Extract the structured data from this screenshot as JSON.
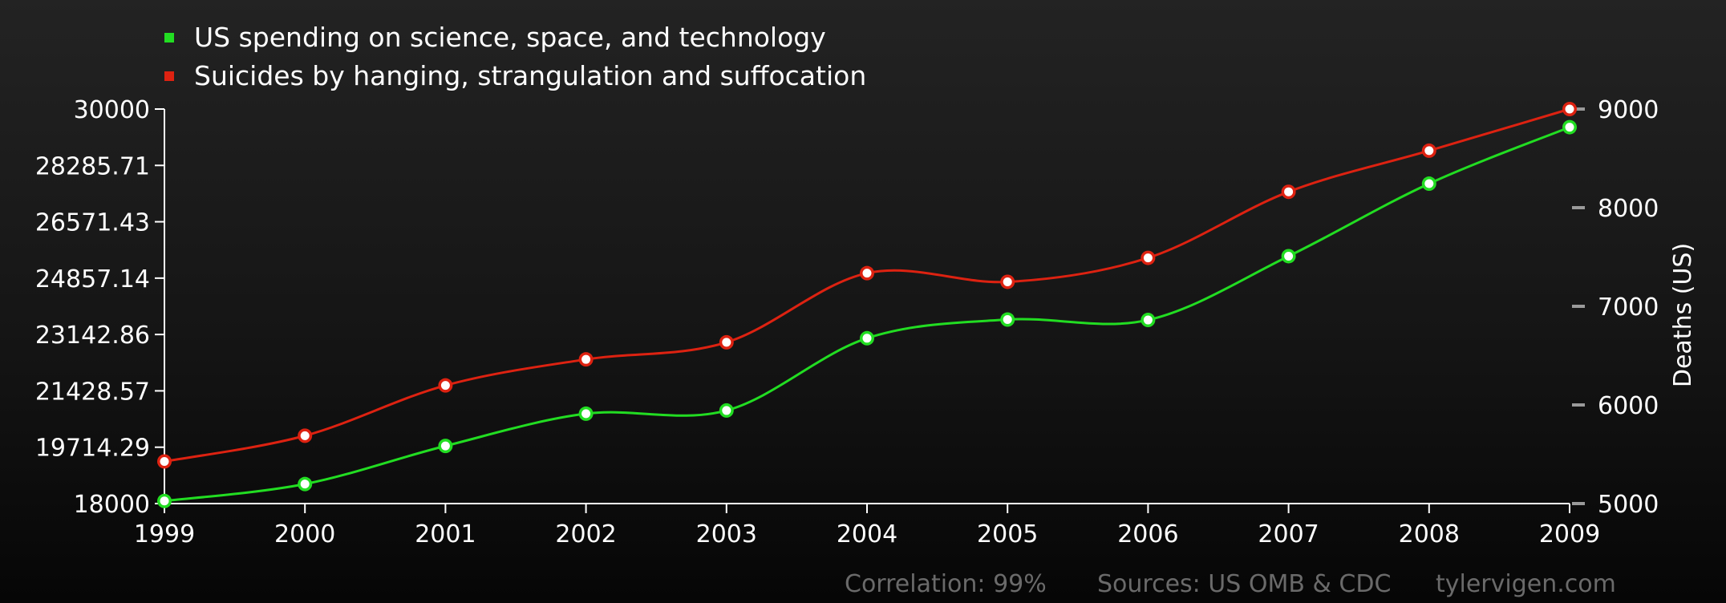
{
  "chart_data": {
    "type": "line",
    "x": [
      "1999",
      "2000",
      "2001",
      "2002",
      "2003",
      "2004",
      "2005",
      "2006",
      "2007",
      "2008",
      "2009"
    ],
    "series": [
      {
        "name": "US spending on science, space, and technology",
        "color": "#22dd22",
        "axis": "left",
        "values": [
          18079,
          18594,
          19753,
          20734,
          20831,
          23029,
          23597,
          23584,
          25525,
          27731,
          29449
        ]
      },
      {
        "name": "Suicides by hanging, strangulation and suffocation",
        "color": "#dd2211",
        "axis": "right",
        "values": [
          5427,
          5688,
          6198,
          6462,
          6635,
          7336,
          7248,
          7491,
          8161,
          8578,
          9000
        ]
      }
    ],
    "y_left": {
      "lim": [
        18000,
        30000
      ],
      "ticks": [
        "18000",
        "19714.29",
        "21428.57",
        "23142.86",
        "24857.14",
        "26571.43",
        "28285.71",
        "30000"
      ]
    },
    "y_right": {
      "lim": [
        5000,
        9000
      ],
      "ticks": [
        "5000",
        "6000",
        "7000",
        "8000",
        "9000"
      ],
      "label": "Deaths (US)"
    },
    "legend_position": "top-left",
    "grid": false
  },
  "footer": {
    "correlation": "Correlation: 99%",
    "sources": "Sources: US OMB & CDC",
    "site": "tylervigen.com"
  }
}
